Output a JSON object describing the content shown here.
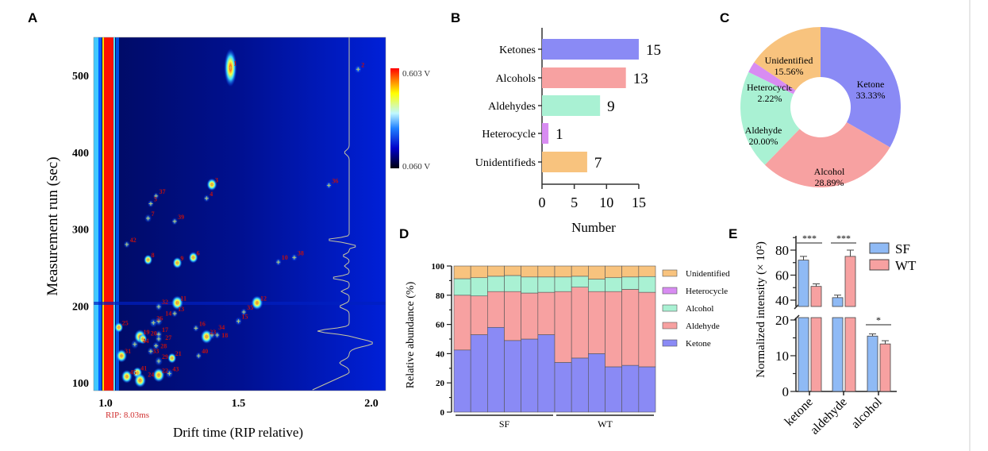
{
  "chart_data": [
    {
      "panel": "A",
      "type": "heatmap",
      "xlabel": "Drift time (RIP relative)",
      "ylabel": "Measurement run (sec)",
      "x_ticks": [
        "1.0",
        "1.5",
        "2.0"
      ],
      "y_ticks": [
        "100",
        "200",
        "300",
        "400",
        "500"
      ],
      "xlim": [
        0.95,
        2.05
      ],
      "ylim": [
        90,
        545
      ],
      "rip_label": "RIP: 8.03ms",
      "colorbar": {
        "max_label": "0.603 V",
        "min_label": "0.060 V",
        "colors": [
          "#000010",
          "#0000c8",
          "#2080ff",
          "#c0f8ff",
          "#ffff00",
          "#ff8000",
          "#ff0000"
        ]
      },
      "peaks": [
        {
          "id": "1",
          "x": 1.47,
          "y": 510,
          "i": 1.0
        },
        {
          "id": "2",
          "x": 1.95,
          "y": 508,
          "i": 0.3
        },
        {
          "id": "3",
          "x": 1.4,
          "y": 358,
          "i": 0.7
        },
        {
          "id": "4",
          "x": 1.38,
          "y": 340,
          "i": 0.2
        },
        {
          "id": "36",
          "x": 1.84,
          "y": 357,
          "i": 0.2
        },
        {
          "id": "5",
          "x": 1.17,
          "y": 333,
          "i": 0.2
        },
        {
          "id": "37",
          "x": 1.19,
          "y": 343,
          "i": 0.15
        },
        {
          "id": "7",
          "x": 1.16,
          "y": 314,
          "i": 0.3
        },
        {
          "id": "39",
          "x": 1.26,
          "y": 310,
          "i": 0.2
        },
        {
          "id": "42",
          "x": 1.08,
          "y": 280,
          "i": 0.2
        },
        {
          "id": "8",
          "x": 1.16,
          "y": 260,
          "i": 0.5
        },
        {
          "id": "9",
          "x": 1.27,
          "y": 256,
          "i": 0.6
        },
        {
          "id": "6",
          "x": 1.33,
          "y": 263,
          "i": 0.6
        },
        {
          "id": "10",
          "x": 1.65,
          "y": 257,
          "i": 0.2
        },
        {
          "id": "38",
          "x": 1.71,
          "y": 263,
          "i": 0.2
        },
        {
          "id": "11",
          "x": 1.27,
          "y": 204,
          "i": 0.9
        },
        {
          "id": "12",
          "x": 1.57,
          "y": 204,
          "i": 0.9
        },
        {
          "id": "32",
          "x": 1.2,
          "y": 199,
          "i": 0.3
        },
        {
          "id": "13",
          "x": 1.26,
          "y": 190,
          "i": 0.2
        },
        {
          "id": "35",
          "x": 1.52,
          "y": 192,
          "i": 0.2
        },
        {
          "id": "15",
          "x": 1.5,
          "y": 180,
          "i": 0.3
        },
        {
          "id": "25",
          "x": 1.05,
          "y": 172,
          "i": 0.5
        },
        {
          "id": "26",
          "x": 1.18,
          "y": 178,
          "i": 0.4
        },
        {
          "id": "14",
          "x": 1.2,
          "y": 180,
          "i": 0.4
        },
        {
          "id": "16",
          "x": 1.34,
          "y": 171,
          "i": 0.2
        },
        {
          "id": "19",
          "x": 1.13,
          "y": 160,
          "i": 0.9
        },
        {
          "id": "20",
          "x": 1.14,
          "y": 157,
          "i": 0.5
        },
        {
          "id": "17",
          "x": 1.2,
          "y": 163,
          "i": 0.3
        },
        {
          "id": "27",
          "x": 1.2,
          "y": 157,
          "i": 0.3
        },
        {
          "id": "23",
          "x": 1.38,
          "y": 160,
          "i": 0.9
        },
        {
          "id": "34",
          "x": 1.4,
          "y": 162,
          "i": 0.3
        },
        {
          "id": "18",
          "x": 1.42,
          "y": 162,
          "i": 0.2
        },
        {
          "id": "44",
          "x": 1.11,
          "y": 150,
          "i": 0.4
        },
        {
          "id": "28",
          "x": 1.19,
          "y": 148,
          "i": 0.3
        },
        {
          "id": "33",
          "x": 1.17,
          "y": 141,
          "i": 0.3
        },
        {
          "id": "31",
          "x": 1.06,
          "y": 135,
          "i": 0.8
        },
        {
          "id": "21",
          "x": 1.25,
          "y": 132,
          "i": 0.5
        },
        {
          "id": "29",
          "x": 1.2,
          "y": 128,
          "i": 0.4
        },
        {
          "id": "40",
          "x": 1.35,
          "y": 135,
          "i": 0.2
        },
        {
          "id": "41",
          "x": 1.12,
          "y": 113,
          "i": 0.6
        },
        {
          "id": "22",
          "x": 1.2,
          "y": 110,
          "i": 0.9
        },
        {
          "id": "43",
          "x": 1.24,
          "y": 112,
          "i": 0.4
        },
        {
          "id": "45",
          "x": 1.08,
          "y": 108,
          "i": 0.8
        },
        {
          "id": "24",
          "x": 1.13,
          "y": 103,
          "i": 0.9
        }
      ]
    },
    {
      "panel": "B",
      "type": "bar",
      "orientation": "horizontal",
      "categories": [
        "Ketones",
        "Alcohols",
        "Aldehydes",
        "Heterocycle",
        "Unidentifieds"
      ],
      "values": [
        15,
        13,
        9,
        1,
        7
      ],
      "colors": [
        "#8a8af5",
        "#f7a1a1",
        "#a9f1d3",
        "#d88cf2",
        "#f8c37e"
      ],
      "xlabel": "Number",
      "xlim": [
        0,
        16
      ],
      "x_ticks": [
        "0",
        "5",
        "10",
        "15"
      ]
    },
    {
      "panel": "C",
      "type": "pie",
      "donut": true,
      "labels": [
        "Ketone",
        "Alcohol",
        "Aldehyde",
        "Heterocycle",
        "Unidentified"
      ],
      "values": [
        33.33,
        28.89,
        20.0,
        2.22,
        15.56
      ],
      "value_labels": [
        "33.33%",
        "28.89%",
        "20.00%",
        "2.22%",
        "15.56%"
      ],
      "colors": [
        "#8a8af5",
        "#f7a1a1",
        "#a9f1d3",
        "#d88cf2",
        "#f8c37e"
      ]
    },
    {
      "panel": "D",
      "type": "bar",
      "stacked": true,
      "ylabel": "Relative abundance (%)",
      "ylim": [
        0,
        100
      ],
      "y_ticks": [
        "0",
        "20",
        "40",
        "60",
        "80",
        "100"
      ],
      "groups": [
        {
          "label": "SF",
          "bars": 6
        },
        {
          "label": "WT",
          "bars": 6
        }
      ],
      "legend_position": "right",
      "series": [
        {
          "name": "Ketone",
          "color": "#8a8af5",
          "values": [
            42.5,
            53,
            58,
            49,
            50,
            53,
            34,
            37,
            40,
            31,
            32,
            31
          ]
        },
        {
          "name": "Aldehyde",
          "color": "#f7a1a1",
          "values": [
            37.5,
            26.5,
            24.5,
            33.5,
            31.5,
            29,
            48.5,
            48.5,
            42.5,
            51.5,
            52,
            51
          ]
        },
        {
          "name": "Heterocycle",
          "color": "#d88cf2",
          "values": [
            0,
            0,
            0,
            0,
            0,
            0,
            0,
            0,
            0,
            0,
            0,
            0
          ]
        },
        {
          "name": "Alcohol",
          "color": "#a9f1d3",
          "values": [
            11.3,
            12.5,
            10.5,
            11,
            11,
            10.5,
            10,
            7.5,
            8.5,
            9.5,
            8.5,
            10.8
          ]
        },
        {
          "name": "Unidentified",
          "color": "#f8c37e",
          "values": [
            8.7,
            8,
            7,
            6.5,
            7.5,
            7.5,
            7.5,
            7,
            9,
            8,
            7.5,
            7.2
          ]
        }
      ]
    },
    {
      "panel": "E",
      "type": "bar",
      "ylabel": "Normalized intensity (× 10²)",
      "categories": [
        "ketone",
        "aldehyde",
        "alcohol"
      ],
      "axis_break": [
        20,
        36
      ],
      "y_ticks_lower": [
        "0",
        "10",
        "20"
      ],
      "y_ticks_upper": [
        "40",
        "60",
        "80"
      ],
      "legend_position": "right",
      "series": [
        {
          "name": "SF",
          "color": "#8fbaf5",
          "values": [
            72,
            42,
            15.5
          ],
          "errors": [
            3,
            2,
            0.6
          ]
        },
        {
          "name": "WT",
          "color": "#f7a1a1",
          "values": [
            51,
            75,
            13.3
          ],
          "errors": [
            2,
            5,
            0.9
          ]
        }
      ],
      "significance": [
        "***",
        "***",
        "*"
      ]
    }
  ],
  "panel_letters": [
    "A",
    "B",
    "C",
    "D",
    "E"
  ]
}
